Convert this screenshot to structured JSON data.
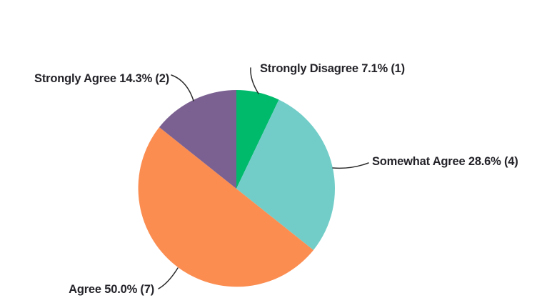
{
  "chart_data": {
    "type": "pie",
    "title": "",
    "start_angle": "top",
    "direction": "clockwise",
    "label_color": "#232329",
    "leader_line_color": "#2b2b2b",
    "background_color": "#ffffff",
    "slices": [
      {
        "label": "Strongly Disagree",
        "percent": 7.1,
        "count": 1,
        "display": "Strongly Disagree 7.1% (1)",
        "color": "#00ba6c"
      },
      {
        "label": "Somewhat Agree",
        "percent": 28.6,
        "count": 4,
        "display": "Somewhat Agree 28.6% (4)",
        "color": "#72cdc8"
      },
      {
        "label": "Agree",
        "percent": 50.0,
        "count": 7,
        "display": "Agree 50.0% (7)",
        "color": "#fb8d51"
      },
      {
        "label": "Strongly Agree",
        "percent": 14.3,
        "count": 2,
        "display": "Strongly Agree 14.3% (2)",
        "color": "#7b6191"
      }
    ]
  }
}
